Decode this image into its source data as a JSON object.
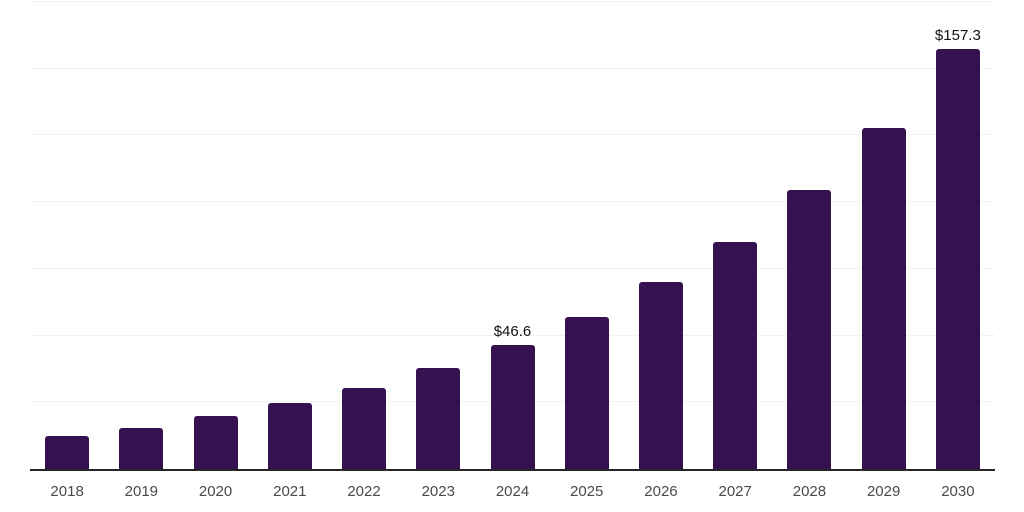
{
  "chart_data": {
    "type": "bar",
    "title": "",
    "xlabel": "",
    "ylabel": "",
    "categories": [
      "2018",
      "2019",
      "2020",
      "2021",
      "2022",
      "2023",
      "2024",
      "2025",
      "2026",
      "2027",
      "2028",
      "2029",
      "2030"
    ],
    "values": [
      12.4,
      15.4,
      19.7,
      24.6,
      30.5,
      38.0,
      46.6,
      56.8,
      70.0,
      85.0,
      104.4,
      127.8,
      157.3
    ],
    "data_labels": [
      {
        "category": "2024",
        "text": "$46.6"
      },
      {
        "category": "2030",
        "text": "$157.3"
      }
    ],
    "ylim": [
      0,
      175
    ],
    "grid_step": 25,
    "grid": true,
    "legend": false,
    "y_tick_labels_visible": false,
    "colors": {
      "bar": "#36114f",
      "axis_line": "#262626",
      "gridline": "#f2f2f2",
      "tick_label": "#4a4a4a",
      "data_label": "#111111",
      "background": "#ffffff"
    }
  }
}
